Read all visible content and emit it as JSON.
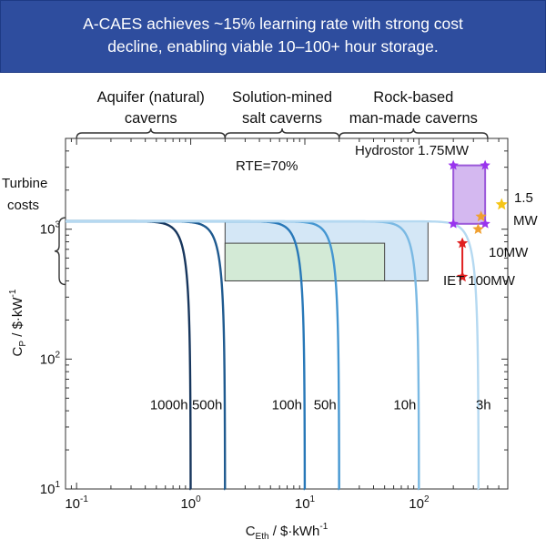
{
  "header": {
    "line1": "A-CAES achieves ~15% learning rate with strong cost",
    "line2": "decline, enabling viable 10–100+ hour storage."
  },
  "chart_data": {
    "type": "line",
    "xscale": "log",
    "yscale": "log",
    "xlim": [
      0.08,
      600
    ],
    "ylim": [
      10,
      5000
    ],
    "xlabel": {
      "base": "C",
      "sub": "Eth",
      "unit": " / $·kWh",
      "sup": "-1"
    },
    "ylabel": {
      "base": "C",
      "sub": "P",
      "unit": " / $·kW",
      "sup": "-1"
    },
    "xticks": [
      {
        "value": 0.1,
        "base": "10",
        "exp": "-1"
      },
      {
        "value": 1,
        "base": "10",
        "exp": "0"
      },
      {
        "value": 10,
        "base": "10",
        "exp": "1"
      },
      {
        "value": 100,
        "base": "10",
        "exp": "2"
      }
    ],
    "yticks": [
      {
        "value": 10,
        "base": "10",
        "exp": "1"
      },
      {
        "value": 100,
        "base": "10",
        "exp": "2"
      },
      {
        "value": 1000,
        "base": "10",
        "exp": "3"
      }
    ],
    "annotations": {
      "rte": "RTE=70%",
      "turbine_line1": "Turbine",
      "turbine_line2": "costs"
    },
    "cavern_categories": [
      {
        "line1": "Aquifer (natural)",
        "line2": "caverns",
        "range": [
          0.1,
          2
        ]
      },
      {
        "line1": "Solution-mined",
        "line2": "salt caverns",
        "range": [
          2,
          20
        ]
      },
      {
        "line1": "Rock-based",
        "line2": "man-made caverns",
        "range": [
          20,
          400
        ]
      }
    ],
    "series": [
      {
        "name": "1000h",
        "asymptote": 1.0,
        "color": "#17365d"
      },
      {
        "name": "500h",
        "asymptote": 2.0,
        "color": "#1f5a8f"
      },
      {
        "name": "100h",
        "asymptote": 10.0,
        "color": "#2878b8"
      },
      {
        "name": "50h",
        "asymptote": 20.0,
        "color": "#4496d1"
      },
      {
        "name": "10h",
        "asymptote": 100.0,
        "color": "#7ab9e3"
      },
      {
        "name": "3h",
        "asymptote": 333.0,
        "color": "#b5d9f1"
      }
    ],
    "curve_max": 1150,
    "regions": [
      {
        "name": "blue-region",
        "x": [
          2,
          120
        ],
        "y": [
          400,
          1150
        ],
        "fill": "#d4e7f6",
        "stroke": "#444444"
      },
      {
        "name": "green-region",
        "x": [
          2,
          50
        ],
        "y": [
          400,
          780
        ],
        "fill": "#d3ead6",
        "stroke": "#444444"
      }
    ],
    "projects": [
      {
        "label": "Hydrostor 1.75MW",
        "x": [
          200,
          380
        ],
        "y": [
          1100,
          3100
        ],
        "fill": "#d4b8f0",
        "stroke": "#9b59d9",
        "marker": "#9933ee"
      },
      {
        "label": "1.5",
        "label2": "MW",
        "x": 530,
        "y": 1550,
        "marker": "#f5c518"
      },
      {
        "label": "10MW",
        "points": [
          {
            "x": 350,
            "y": 1250
          },
          {
            "x": 330,
            "y": 1000
          }
        ],
        "marker": "#f0a030"
      },
      {
        "label": "IET 100MW",
        "points": [
          {
            "x": 240,
            "y": 780
          },
          {
            "x": 240,
            "y": 430
          }
        ],
        "marker": "#e02020",
        "line": "#e02020"
      }
    ]
  }
}
